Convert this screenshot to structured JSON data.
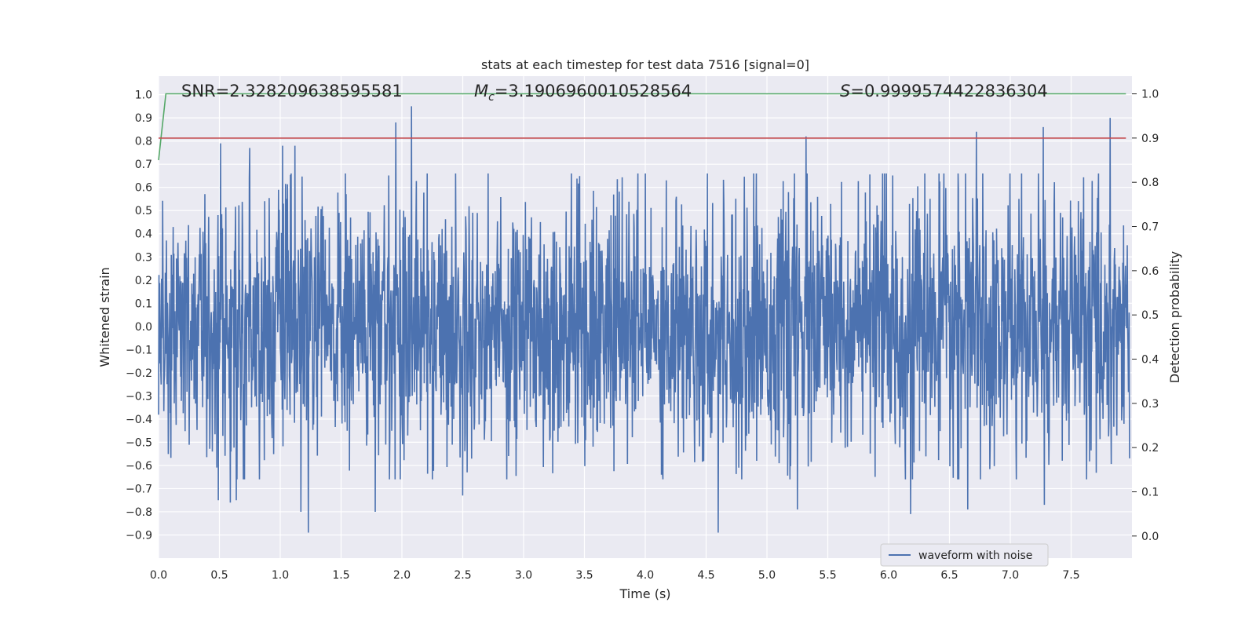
{
  "chart_data": {
    "type": "line",
    "title": "stats at each timestep for test data 7516 [signal=0]",
    "xlabel": "Time (s)",
    "ylabel": "Whitened strain",
    "y2label": "Detection probability",
    "xlim": [
      0,
      8
    ],
    "ylim": [
      -1.0,
      1.08
    ],
    "y2lim": [
      -0.05,
      1.04
    ],
    "x_ticks": [
      "0.0",
      "0.5",
      "1.0",
      "1.5",
      "2.0",
      "2.5",
      "3.0",
      "3.5",
      "4.0",
      "4.5",
      "5.0",
      "5.5",
      "6.0",
      "6.5",
      "7.0",
      "7.5"
    ],
    "y_ticks": [
      "1.0",
      "0.9",
      "0.8",
      "0.7",
      "0.6",
      "0.5",
      "0.4",
      "0.3",
      "0.2",
      "0.1",
      "0.0",
      "−0.1",
      "−0.2",
      "−0.3",
      "−0.4",
      "−0.5",
      "−0.6",
      "−0.7",
      "−0.8",
      "−0.9"
    ],
    "y2_ticks": [
      "1.0",
      "0.9",
      "0.8",
      "0.7",
      "0.6",
      "0.5",
      "0.4",
      "0.3",
      "0.2",
      "0.1",
      "0.0"
    ],
    "grid": true,
    "legend_position": "lower right",
    "background": "#eaeaf2",
    "series": [
      {
        "name": "waveform with noise",
        "axis": "left",
        "color": "#4c72b0",
        "kind": "noise",
        "samples": 8192,
        "typical_envelope": [
          -0.45,
          0.45
        ],
        "peaks": [
          {
            "x": 0.51,
            "y": 0.79
          },
          {
            "x": 0.75,
            "y": 0.77
          },
          {
            "x": 1.02,
            "y": 0.78
          },
          {
            "x": 1.12,
            "y": 0.78
          },
          {
            "x": 1.95,
            "y": 0.88
          },
          {
            "x": 2.08,
            "y": 0.95
          },
          {
            "x": 2.5,
            "y": 0.81
          },
          {
            "x": 5.32,
            "y": 0.82
          },
          {
            "x": 6.72,
            "y": 0.84
          },
          {
            "x": 7.27,
            "y": 0.86
          },
          {
            "x": 7.82,
            "y": 0.9
          }
        ],
        "troughs": [
          {
            "x": 0.49,
            "y": -0.75
          },
          {
            "x": 0.59,
            "y": -0.76
          },
          {
            "x": 0.64,
            "y": -0.75
          },
          {
            "x": 1.17,
            "y": -0.8
          },
          {
            "x": 1.23,
            "y": -0.89
          },
          {
            "x": 1.78,
            "y": -0.8
          },
          {
            "x": 2.5,
            "y": -0.73
          },
          {
            "x": 4.6,
            "y": -0.89
          },
          {
            "x": 5.25,
            "y": -0.79
          },
          {
            "x": 6.18,
            "y": -0.81
          },
          {
            "x": 6.65,
            "y": -0.79
          },
          {
            "x": 7.28,
            "y": -0.77
          }
        ]
      },
      {
        "name": "",
        "axis": "right",
        "color": "#55a868",
        "x": [
          0.0,
          0.06,
          7.95
        ],
        "y": [
          0.85,
          1.0,
          1.0
        ]
      },
      {
        "name": "",
        "axis": "right",
        "color": "#c44e52",
        "x": [
          0.0,
          7.95
        ],
        "y": [
          0.9,
          0.9
        ]
      }
    ],
    "annotations": [
      {
        "kind": "snr",
        "text": "SNR=2.328209638595581"
      },
      {
        "kind": "mc",
        "symbol": "M",
        "subscript": "c",
        "value": "=3.1906960010528564"
      },
      {
        "kind": "s",
        "symbol": "S",
        "value": "=0.9999574422836304"
      }
    ]
  }
}
